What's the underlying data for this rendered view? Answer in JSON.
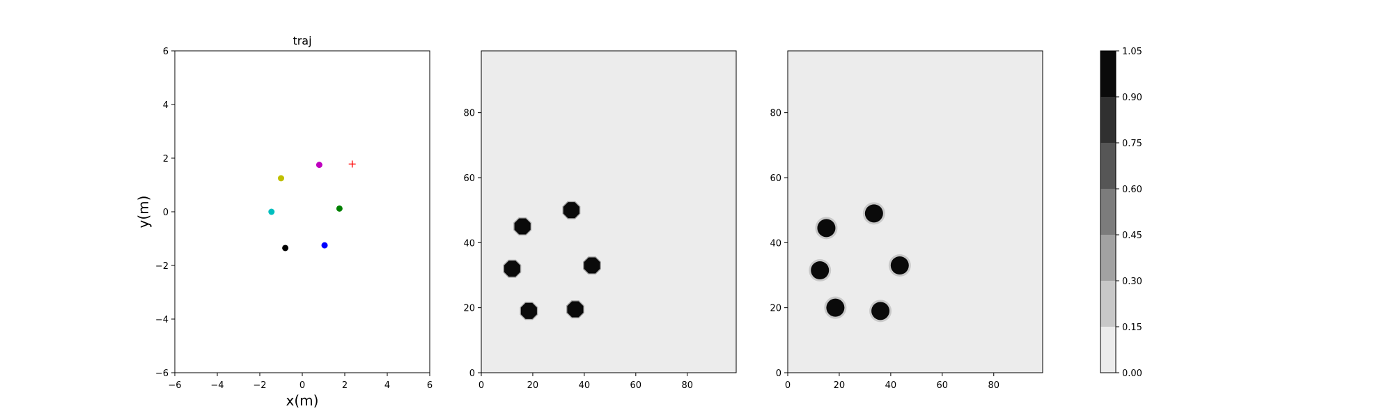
{
  "chart_data": [
    {
      "type": "scatter",
      "title": "traj",
      "xlabel": "x(m)",
      "ylabel": "y(m)",
      "xlim": [
        -6,
        6
      ],
      "ylim": [
        -6,
        6
      ],
      "xticks": [
        "−6",
        "−4",
        "−2",
        "0",
        "2",
        "4",
        "6"
      ],
      "yticks": [
        "−6",
        "−4",
        "−2",
        "0",
        "2",
        "4",
        "6"
      ],
      "grid": false,
      "points": [
        {
          "x": -1.0,
          "y": 1.25,
          "color": "#bfbf00",
          "marker": "circle"
        },
        {
          "x": 0.8,
          "y": 1.75,
          "color": "#bf00bf",
          "marker": "circle"
        },
        {
          "x": -1.45,
          "y": 0.0,
          "color": "#00bfbf",
          "marker": "circle"
        },
        {
          "x": 1.75,
          "y": 0.12,
          "color": "#008000",
          "marker": "circle"
        },
        {
          "x": 1.05,
          "y": -1.25,
          "color": "#0000ff",
          "marker": "circle"
        },
        {
          "x": -0.8,
          "y": -1.35,
          "color": "#000000",
          "marker": "circle"
        },
        {
          "x": 2.35,
          "y": 1.78,
          "color": "#ff0000",
          "marker": "plus"
        }
      ]
    },
    {
      "type": "heatmap",
      "title": "",
      "xlim": [
        0,
        99
      ],
      "ylim": [
        0,
        99
      ],
      "xticks": [
        "0",
        "20",
        "40",
        "60",
        "80"
      ],
      "yticks": [
        "0",
        "20",
        "40",
        "60",
        "80"
      ],
      "background_value": 0.0,
      "blobs": [
        {
          "x": 16,
          "y": 45,
          "value": 1.0
        },
        {
          "x": 35,
          "y": 50,
          "value": 1.0
        },
        {
          "x": 12,
          "y": 32,
          "value": 1.0
        },
        {
          "x": 43,
          "y": 33,
          "value": 1.0
        },
        {
          "x": 18.5,
          "y": 19,
          "value": 1.0
        },
        {
          "x": 36.5,
          "y": 19.5,
          "value": 1.0
        }
      ]
    },
    {
      "type": "heatmap",
      "title": "",
      "xlim": [
        0,
        99
      ],
      "ylim": [
        0,
        99
      ],
      "xticks": [
        "0",
        "20",
        "40",
        "60",
        "80"
      ],
      "yticks": [
        "0",
        "20",
        "40",
        "60",
        "80"
      ],
      "background_value": 0.0,
      "blobs": [
        {
          "x": 15,
          "y": 44.5,
          "value": 1.0
        },
        {
          "x": 33.5,
          "y": 49,
          "value": 1.0
        },
        {
          "x": 12.5,
          "y": 31.5,
          "value": 1.0
        },
        {
          "x": 43.5,
          "y": 33,
          "value": 1.0
        },
        {
          "x": 18.5,
          "y": 20,
          "value": 1.0
        },
        {
          "x": 36,
          "y": 19,
          "value": 1.0
        }
      ]
    }
  ],
  "colorbar": {
    "tick_labels": [
      "0.00",
      "0.15",
      "0.30",
      "0.45",
      "0.60",
      "0.75",
      "0.90",
      "1.05"
    ],
    "levels": [
      0.0,
      0.15,
      0.3,
      0.45,
      0.6,
      0.75,
      0.9,
      1.05
    ],
    "colors": [
      "#ececec",
      "#c8c8c8",
      "#a2a2a2",
      "#7c7c7c",
      "#565656",
      "#303030",
      "#0a0a0a"
    ]
  }
}
